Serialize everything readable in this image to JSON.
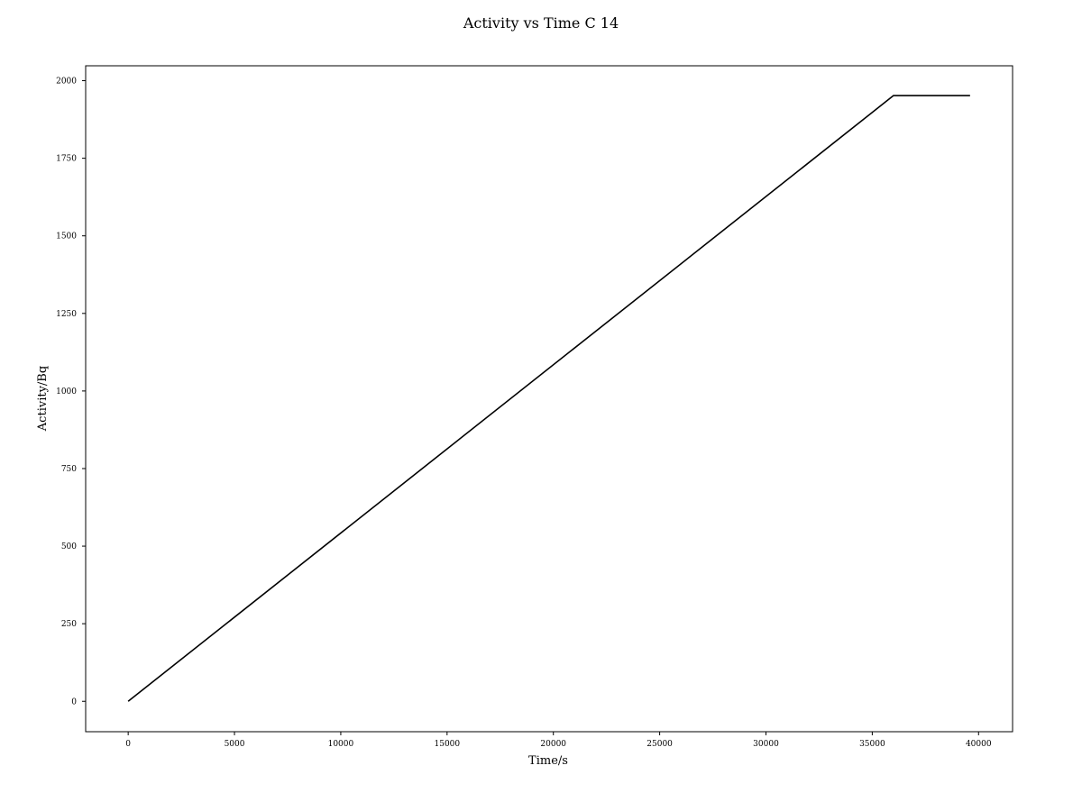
{
  "chart_data": {
    "type": "line",
    "title": "Activity vs Time C 14",
    "xlabel": "Time/s",
    "ylabel": "Activity/Bq",
    "xlim": [
      -2000,
      41600
    ],
    "ylim": [
      -98,
      2048
    ],
    "xticks": [
      0,
      5000,
      10000,
      15000,
      20000,
      25000,
      30000,
      35000,
      40000
    ],
    "yticks": [
      0,
      250,
      500,
      750,
      1000,
      1250,
      1500,
      1750,
      2000
    ],
    "grid": false,
    "line_color": "#000000",
    "series": [
      {
        "x": [
          0,
          36000,
          39600
        ],
        "y": [
          0,
          1952,
          1952
        ]
      }
    ]
  }
}
